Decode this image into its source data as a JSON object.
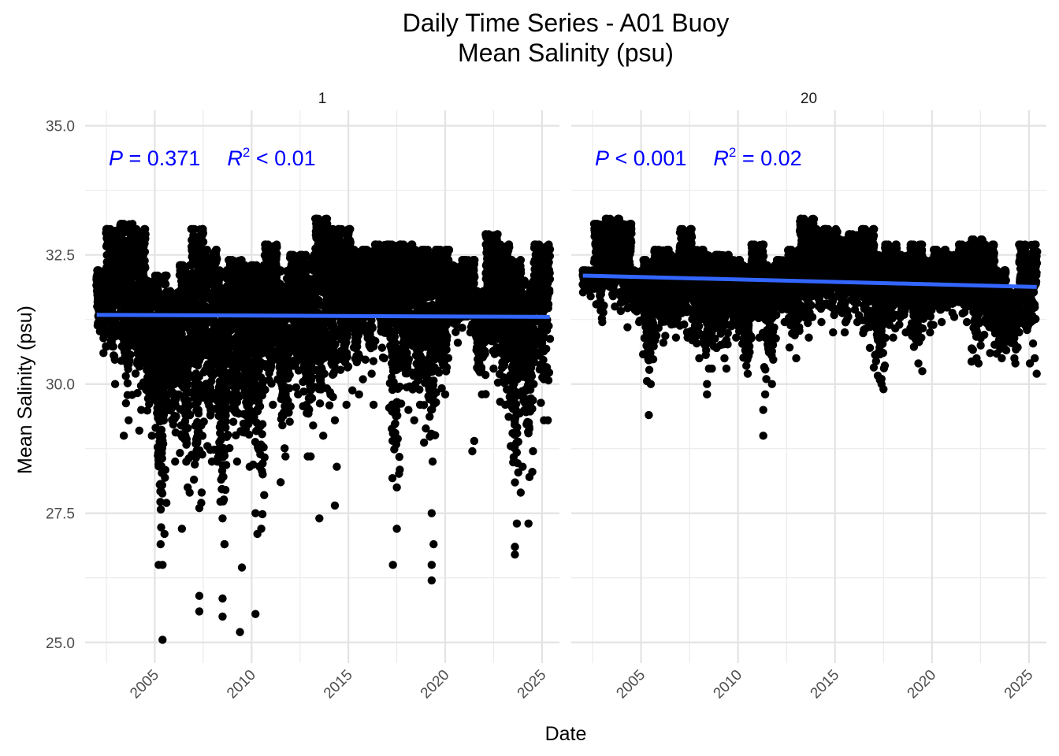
{
  "chart_data": {
    "type": "scatter",
    "title": "Daily Time Series - A01 Buoy",
    "subtitle": "Mean Salinity (psu)",
    "xlabel": "Date",
    "ylabel": "Mean Salinity (psu)",
    "x_unit": "year",
    "xlim": [
      2001.4,
      2025.9
    ],
    "ylim": [
      24.6,
      35.3
    ],
    "x_ticks": [
      2005,
      2010,
      2015,
      2020,
      2025
    ],
    "x_tick_labels": [
      "2005",
      "2010",
      "2015",
      "2020",
      "2025"
    ],
    "y_ticks": [
      25.0,
      27.5,
      30.0,
      32.5,
      35.0
    ],
    "y_tick_labels": [
      "25.0",
      "27.5",
      "30.0",
      "32.5",
      "35.0"
    ],
    "grid": true,
    "point_color": "#000000",
    "trend_color": "#3366FF",
    "stat_color": "#0000FF",
    "panels": [
      {
        "strip": "1",
        "stats": {
          "p_sym": "P",
          "p_text": " = 0.371",
          "r_sym": "R",
          "r_sup": "2",
          "r_text": " < 0.01"
        },
        "trend": {
          "x": [
            2002.0,
            2025.4
          ],
          "y": [
            31.34,
            31.3
          ]
        },
        "segments": [
          {
            "x0": 2002.0,
            "x1": 2002.5,
            "lo": 30.6,
            "hi": 32.2
          },
          {
            "x0": 2002.5,
            "x1": 2003.2,
            "lo": 30.0,
            "hi": 33.0
          },
          {
            "x0": 2003.2,
            "x1": 2003.9,
            "lo": 29.3,
            "hi": 33.1
          },
          {
            "x0": 2003.9,
            "x1": 2004.5,
            "lo": 29.5,
            "hi": 33.0
          },
          {
            "x0": 2004.5,
            "x1": 2005.0,
            "lo": 29.0,
            "hi": 32.0
          },
          {
            "x0": 2005.0,
            "x1": 2005.6,
            "lo": 26.5,
            "hi": 32.1
          },
          {
            "x0": 2005.6,
            "x1": 2006.3,
            "lo": 28.5,
            "hi": 31.8
          },
          {
            "x0": 2006.3,
            "x1": 2006.9,
            "lo": 28.0,
            "hi": 32.3
          },
          {
            "x0": 2006.9,
            "x1": 2007.5,
            "lo": 27.6,
            "hi": 33.0
          },
          {
            "x0": 2007.5,
            "x1": 2008.2,
            "lo": 28.5,
            "hi": 32.6
          },
          {
            "x0": 2008.2,
            "x1": 2008.8,
            "lo": 26.9,
            "hi": 32.2
          },
          {
            "x0": 2008.8,
            "x1": 2009.5,
            "lo": 28.5,
            "hi": 32.4
          },
          {
            "x0": 2009.5,
            "x1": 2010.1,
            "lo": 28.4,
            "hi": 32.3
          },
          {
            "x0": 2010.1,
            "x1": 2010.7,
            "lo": 27.2,
            "hi": 32.3
          },
          {
            "x0": 2010.7,
            "x1": 2011.3,
            "lo": 29.6,
            "hi": 32.7
          },
          {
            "x0": 2011.3,
            "x1": 2012.0,
            "lo": 28.6,
            "hi": 32.2
          },
          {
            "x0": 2012.0,
            "x1": 2012.6,
            "lo": 29.8,
            "hi": 32.5
          },
          {
            "x0": 2012.6,
            "x1": 2013.3,
            "lo": 28.6,
            "hi": 32.5
          },
          {
            "x0": 2013.3,
            "x1": 2013.9,
            "lo": 29.0,
            "hi": 33.2
          },
          {
            "x0": 2013.9,
            "x1": 2014.5,
            "lo": 29.3,
            "hi": 33.0
          },
          {
            "x0": 2014.5,
            "x1": 2015.1,
            "lo": 29.6,
            "hi": 33.0
          },
          {
            "x0": 2015.1,
            "x1": 2015.8,
            "lo": 29.8,
            "hi": 32.6
          },
          {
            "x0": 2015.8,
            "x1": 2016.4,
            "lo": 30.2,
            "hi": 32.6
          },
          {
            "x0": 2016.4,
            "x1": 2017.1,
            "lo": 30.5,
            "hi": 32.7
          },
          {
            "x0": 2017.1,
            "x1": 2017.7,
            "lo": 28.0,
            "hi": 32.7
          },
          {
            "x0": 2017.7,
            "x1": 2018.3,
            "lo": 29.5,
            "hi": 32.7
          },
          {
            "x0": 2018.3,
            "x1": 2018.9,
            "lo": 29.6,
            "hi": 32.6
          },
          {
            "x0": 2018.9,
            "x1": 2019.6,
            "lo": 28.5,
            "hi": 32.6
          },
          {
            "x0": 2019.6,
            "x1": 2020.2,
            "lo": 29.8,
            "hi": 32.6
          },
          {
            "x0": 2020.2,
            "x1": 2020.9,
            "lo": 30.8,
            "hi": 32.3
          },
          {
            "x0": 2020.9,
            "x1": 2021.5,
            "lo": 31.0,
            "hi": 32.4
          },
          {
            "x0": 2021.5,
            "x1": 2022.1,
            "lo": 29.8,
            "hi": 31.8
          },
          {
            "x0": 2022.1,
            "x1": 2022.7,
            "lo": 30.3,
            "hi": 32.9
          },
          {
            "x0": 2022.7,
            "x1": 2023.3,
            "lo": 29.6,
            "hi": 32.7
          },
          {
            "x0": 2023.3,
            "x1": 2023.9,
            "lo": 27.3,
            "hi": 32.4
          },
          {
            "x0": 2023.9,
            "x1": 2024.6,
            "lo": 28.2,
            "hi": 32.0
          },
          {
            "x0": 2024.6,
            "x1": 2025.4,
            "lo": 29.3,
            "hi": 32.7
          }
        ],
        "outliers": [
          [
            2005.4,
            25.05
          ],
          [
            2005.2,
            26.5
          ],
          [
            2005.3,
            26.9
          ],
          [
            2005.5,
            27.1
          ],
          [
            2005.6,
            27.7
          ],
          [
            2006.4,
            27.2
          ],
          [
            2006.8,
            27.9
          ],
          [
            2007.3,
            25.9
          ],
          [
            2007.3,
            25.6
          ],
          [
            2007.4,
            27.7
          ],
          [
            2008.5,
            25.85
          ],
          [
            2008.5,
            25.5
          ],
          [
            2008.6,
            26.9
          ],
          [
            2008.5,
            27.4
          ],
          [
            2009.4,
            25.2
          ],
          [
            2009.5,
            26.45
          ],
          [
            2010.2,
            25.55
          ],
          [
            2010.3,
            27.1
          ],
          [
            2010.2,
            27.5
          ],
          [
            2011.5,
            28.1
          ],
          [
            2012.9,
            28.6
          ],
          [
            2013.5,
            27.4
          ],
          [
            2014.3,
            27.65
          ],
          [
            2014.4,
            28.4
          ],
          [
            2003.4,
            29.0
          ],
          [
            2004.2,
            29.1
          ],
          [
            2017.3,
            26.5
          ],
          [
            2017.5,
            27.2
          ],
          [
            2019.3,
            26.2
          ],
          [
            2019.3,
            26.5
          ],
          [
            2019.4,
            26.9
          ],
          [
            2019.3,
            27.5
          ],
          [
            2021.4,
            28.7
          ],
          [
            2021.5,
            28.9
          ],
          [
            2023.6,
            26.7
          ],
          [
            2023.6,
            26.85
          ],
          [
            2023.9,
            27.9
          ],
          [
            2024.0,
            28.4
          ],
          [
            2024.3,
            27.3
          ],
          [
            2024.5,
            28.3
          ],
          [
            2025.3,
            29.3
          ],
          [
            2018.4,
            29.3
          ],
          [
            2016.3,
            29.6
          ]
        ]
      },
      {
        "strip": "20",
        "stats": {
          "p_sym": "P",
          "p_text": " < 0.001",
          "r_sym": "R",
          "r_sup": "2",
          "r_text": " = 0.02"
        },
        "trend": {
          "x": [
            2002.0,
            2025.4
          ],
          "y": [
            32.1,
            31.88
          ]
        },
        "segments": [
          {
            "x0": 2002.0,
            "x1": 2002.6,
            "lo": 31.7,
            "hi": 32.2
          },
          {
            "x0": 2002.6,
            "x1": 2003.2,
            "lo": 31.2,
            "hi": 33.1
          },
          {
            "x0": 2003.2,
            "x1": 2003.9,
            "lo": 31.5,
            "hi": 33.2
          },
          {
            "x0": 2003.9,
            "x1": 2004.5,
            "lo": 31.1,
            "hi": 33.1
          },
          {
            "x0": 2004.5,
            "x1": 2005.1,
            "lo": 31.2,
            "hi": 32.2
          },
          {
            "x0": 2005.1,
            "x1": 2005.7,
            "lo": 30.0,
            "hi": 32.4
          },
          {
            "x0": 2005.7,
            "x1": 2006.4,
            "lo": 30.8,
            "hi": 32.6
          },
          {
            "x0": 2006.4,
            "x1": 2007.0,
            "lo": 30.9,
            "hi": 32.5
          },
          {
            "x0": 2007.0,
            "x1": 2007.6,
            "lo": 30.9,
            "hi": 33.0
          },
          {
            "x0": 2007.6,
            "x1": 2008.2,
            "lo": 30.5,
            "hi": 32.6
          },
          {
            "x0": 2008.2,
            "x1": 2008.9,
            "lo": 30.3,
            "hi": 32.5
          },
          {
            "x0": 2008.9,
            "x1": 2009.5,
            "lo": 30.5,
            "hi": 32.5
          },
          {
            "x0": 2009.5,
            "x1": 2010.1,
            "lo": 30.9,
            "hi": 32.4
          },
          {
            "x0": 2010.1,
            "x1": 2010.7,
            "lo": 30.2,
            "hi": 32.3
          },
          {
            "x0": 2010.7,
            "x1": 2011.3,
            "lo": 30.9,
            "hi": 32.7
          },
          {
            "x0": 2011.3,
            "x1": 2012.0,
            "lo": 30.0,
            "hi": 32.3
          },
          {
            "x0": 2012.0,
            "x1": 2012.6,
            "lo": 31.2,
            "hi": 32.4
          },
          {
            "x0": 2012.6,
            "x1": 2013.2,
            "lo": 30.5,
            "hi": 32.6
          },
          {
            "x0": 2013.2,
            "x1": 2013.9,
            "lo": 30.9,
            "hi": 33.2
          },
          {
            "x0": 2013.9,
            "x1": 2014.5,
            "lo": 31.2,
            "hi": 33.0
          },
          {
            "x0": 2014.5,
            "x1": 2015.1,
            "lo": 31.0,
            "hi": 33.0
          },
          {
            "x0": 2015.1,
            "x1": 2015.7,
            "lo": 31.0,
            "hi": 32.8
          },
          {
            "x0": 2015.7,
            "x1": 2016.4,
            "lo": 31.2,
            "hi": 32.9
          },
          {
            "x0": 2016.4,
            "x1": 2017.0,
            "lo": 30.7,
            "hi": 33.0
          },
          {
            "x0": 2017.0,
            "x1": 2017.6,
            "lo": 30.0,
            "hi": 32.5
          },
          {
            "x0": 2017.6,
            "x1": 2018.2,
            "lo": 30.9,
            "hi": 32.7
          },
          {
            "x0": 2018.2,
            "x1": 2018.9,
            "lo": 31.0,
            "hi": 32.5
          },
          {
            "x0": 2018.9,
            "x1": 2019.5,
            "lo": 30.4,
            "hi": 32.7
          },
          {
            "x0": 2019.5,
            "x1": 2020.1,
            "lo": 31.0,
            "hi": 32.4
          },
          {
            "x0": 2020.1,
            "x1": 2020.7,
            "lo": 31.2,
            "hi": 32.6
          },
          {
            "x0": 2020.7,
            "x1": 2021.4,
            "lo": 31.3,
            "hi": 32.5
          },
          {
            "x0": 2021.4,
            "x1": 2022.0,
            "lo": 31.2,
            "hi": 32.7
          },
          {
            "x0": 2022.0,
            "x1": 2022.6,
            "lo": 30.4,
            "hi": 32.8
          },
          {
            "x0": 2022.6,
            "x1": 2023.2,
            "lo": 30.6,
            "hi": 32.7
          },
          {
            "x0": 2023.2,
            "x1": 2023.8,
            "lo": 30.5,
            "hi": 32.2
          },
          {
            "x0": 2023.8,
            "x1": 2024.5,
            "lo": 30.5,
            "hi": 31.8
          },
          {
            "x0": 2024.5,
            "x1": 2025.4,
            "lo": 30.4,
            "hi": 32.7
          }
        ],
        "outliers": [
          [
            2005.4,
            29.4
          ],
          [
            2008.4,
            29.8
          ],
          [
            2008.4,
            30.0
          ],
          [
            2008.5,
            30.3
          ],
          [
            2009.4,
            30.3
          ],
          [
            2011.3,
            29.0
          ],
          [
            2011.3,
            29.5
          ],
          [
            2011.4,
            29.8
          ],
          [
            2017.5,
            29.9
          ],
          [
            2017.4,
            30.1
          ],
          [
            2019.5,
            30.25
          ],
          [
            2022.3,
            30.5
          ],
          [
            2025.4,
            30.2
          ],
          [
            2025.3,
            30.5
          ],
          [
            2024.3,
            30.4
          ]
        ]
      }
    ]
  }
}
